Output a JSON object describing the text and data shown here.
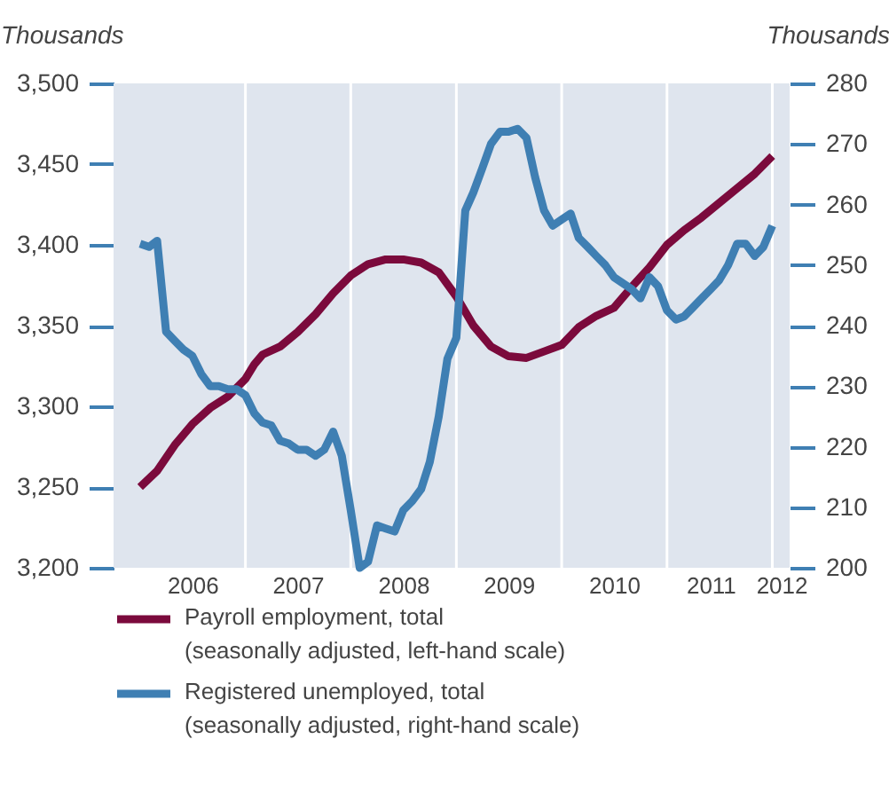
{
  "chart_data": {
    "type": "line",
    "ylabel": "Thousands",
    "y2label": "Thousands",
    "x": [
      "2006-01",
      "2006-03",
      "2006-05",
      "2006-07",
      "2006-09",
      "2006-11",
      "2007-01",
      "2007-02",
      "2007-03",
      "2007-05",
      "2007-07",
      "2007-09",
      "2007-11",
      "2008-01",
      "2008-03",
      "2008-05",
      "2008-07",
      "2008-09",
      "2008-11",
      "2009-01",
      "2009-03",
      "2009-05",
      "2009-07",
      "2009-09",
      "2009-11",
      "2010-01",
      "2010-03",
      "2010-05",
      "2010-07",
      "2010-09",
      "2010-11",
      "2011-01",
      "2011-03",
      "2011-05",
      "2011-07",
      "2011-09",
      "2011-11",
      "2012-01"
    ],
    "series": [
      {
        "name": "Payroll employment, total (seasonally adjusted, left-hand scale)",
        "color": "#7b0a3c",
        "axis": "y",
        "values": [
          3250,
          3260,
          3276,
          3289,
          3299,
          3306,
          3317,
          3326,
          3332,
          3337,
          3346,
          3357,
          3370,
          3381,
          3388,
          3391,
          3391,
          3389,
          3383,
          3368,
          3350,
          3337,
          3331,
          3330,
          3334,
          3338,
          3349,
          3356,
          3361,
          3374,
          3386,
          3400,
          3409,
          3417,
          3426,
          3435,
          3444,
          3455
        ]
      },
      {
        "name": "Registered unemployed, total (seasonally adjusted, right-hand scale)",
        "color": "#3f7fb3",
        "axis": "y2",
        "x": [
          "2006-01",
          "2006-02",
          "2006-03",
          "2006-04",
          "2006-05",
          "2006-06",
          "2006-07",
          "2006-08",
          "2006-09",
          "2006-10",
          "2006-11",
          "2006-12",
          "2007-01",
          "2007-02",
          "2007-03",
          "2007-04",
          "2007-05",
          "2007-06",
          "2007-07",
          "2007-08",
          "2007-09",
          "2007-10",
          "2007-11",
          "2007-12",
          "2008-01",
          "2008-02",
          "2008-03",
          "2008-04",
          "2008-05",
          "2008-06",
          "2008-07",
          "2008-08",
          "2008-09",
          "2008-10",
          "2008-11",
          "2008-12",
          "2009-01",
          "2009-02",
          "2009-03",
          "2009-04",
          "2009-05",
          "2009-06",
          "2009-07",
          "2009-08",
          "2009-09",
          "2009-10",
          "2009-11",
          "2009-12",
          "2010-01",
          "2010-02",
          "2010-03",
          "2010-04",
          "2010-05",
          "2010-06",
          "2010-07",
          "2010-08",
          "2010-09",
          "2010-10",
          "2010-11",
          "2010-12",
          "2011-01",
          "2011-02",
          "2011-03",
          "2011-04",
          "2011-05",
          "2011-06",
          "2011-07",
          "2011-08",
          "2011-09",
          "2011-10",
          "2011-11",
          "2011-12",
          "2012-01"
        ],
        "values": [
          253.5,
          253,
          254,
          239,
          237.5,
          236,
          235,
          232,
          230,
          230,
          229.5,
          229.5,
          228.5,
          225.5,
          224,
          223.5,
          221,
          220.5,
          219.5,
          219.5,
          218.5,
          219.5,
          222.5,
          218.5,
          209.5,
          200,
          201,
          207,
          206.5,
          206,
          209.5,
          211,
          213,
          217.5,
          225,
          234.5,
          238,
          259,
          262,
          266,
          270,
          272,
          272,
          272.5,
          271,
          264.5,
          259,
          256.5,
          257.5,
          258.5,
          254.5,
          253,
          251.5,
          250,
          248,
          247,
          246,
          244.5,
          248,
          246.5,
          242.5,
          241,
          241.5,
          243,
          244.5,
          246,
          247.5,
          250,
          253.5,
          253.5,
          251.5,
          253,
          256.5
        ]
      }
    ],
    "xlim": [
      "2005-10",
      "2012-03"
    ],
    "xticks": [
      {
        "value": "2006-07",
        "label": "2006"
      },
      {
        "value": "2007-07",
        "label": "2007"
      },
      {
        "value": "2008-07",
        "label": "2008"
      },
      {
        "value": "2009-07",
        "label": "2009"
      },
      {
        "value": "2010-07",
        "label": "2010"
      },
      {
        "value": "2011-06",
        "label": "2011"
      },
      {
        "value": "2012-02",
        "label": "2012"
      },
      {
        "value": "2007",
        "label": null
      },
      {
        "value": "2008",
        "label": null
      },
      {
        "value": "2009",
        "label": null
      },
      {
        "value": "2010",
        "label": null
      },
      {
        "value": "2011",
        "label": null
      },
      {
        "value": "2012",
        "label": null
      }
    ],
    "ylim": [
      3200,
      3500
    ],
    "yticks": [
      {
        "value": 3200,
        "label": "3,200"
      },
      {
        "value": 3250,
        "label": "3,250"
      },
      {
        "value": 3300,
        "label": "3,300"
      },
      {
        "value": 3350,
        "label": "3,350"
      },
      {
        "value": 3400,
        "label": "3,400"
      },
      {
        "value": 3450,
        "label": "3,450"
      },
      {
        "value": 3500,
        "label": "3,500"
      }
    ],
    "y2lim": [
      200,
      280
    ],
    "y2ticks": [
      200,
      210,
      220,
      230,
      240,
      250,
      260,
      270,
      280
    ],
    "grid": "x",
    "legend": "bottom",
    "marker": "none",
    "line_style": "solid"
  }
}
